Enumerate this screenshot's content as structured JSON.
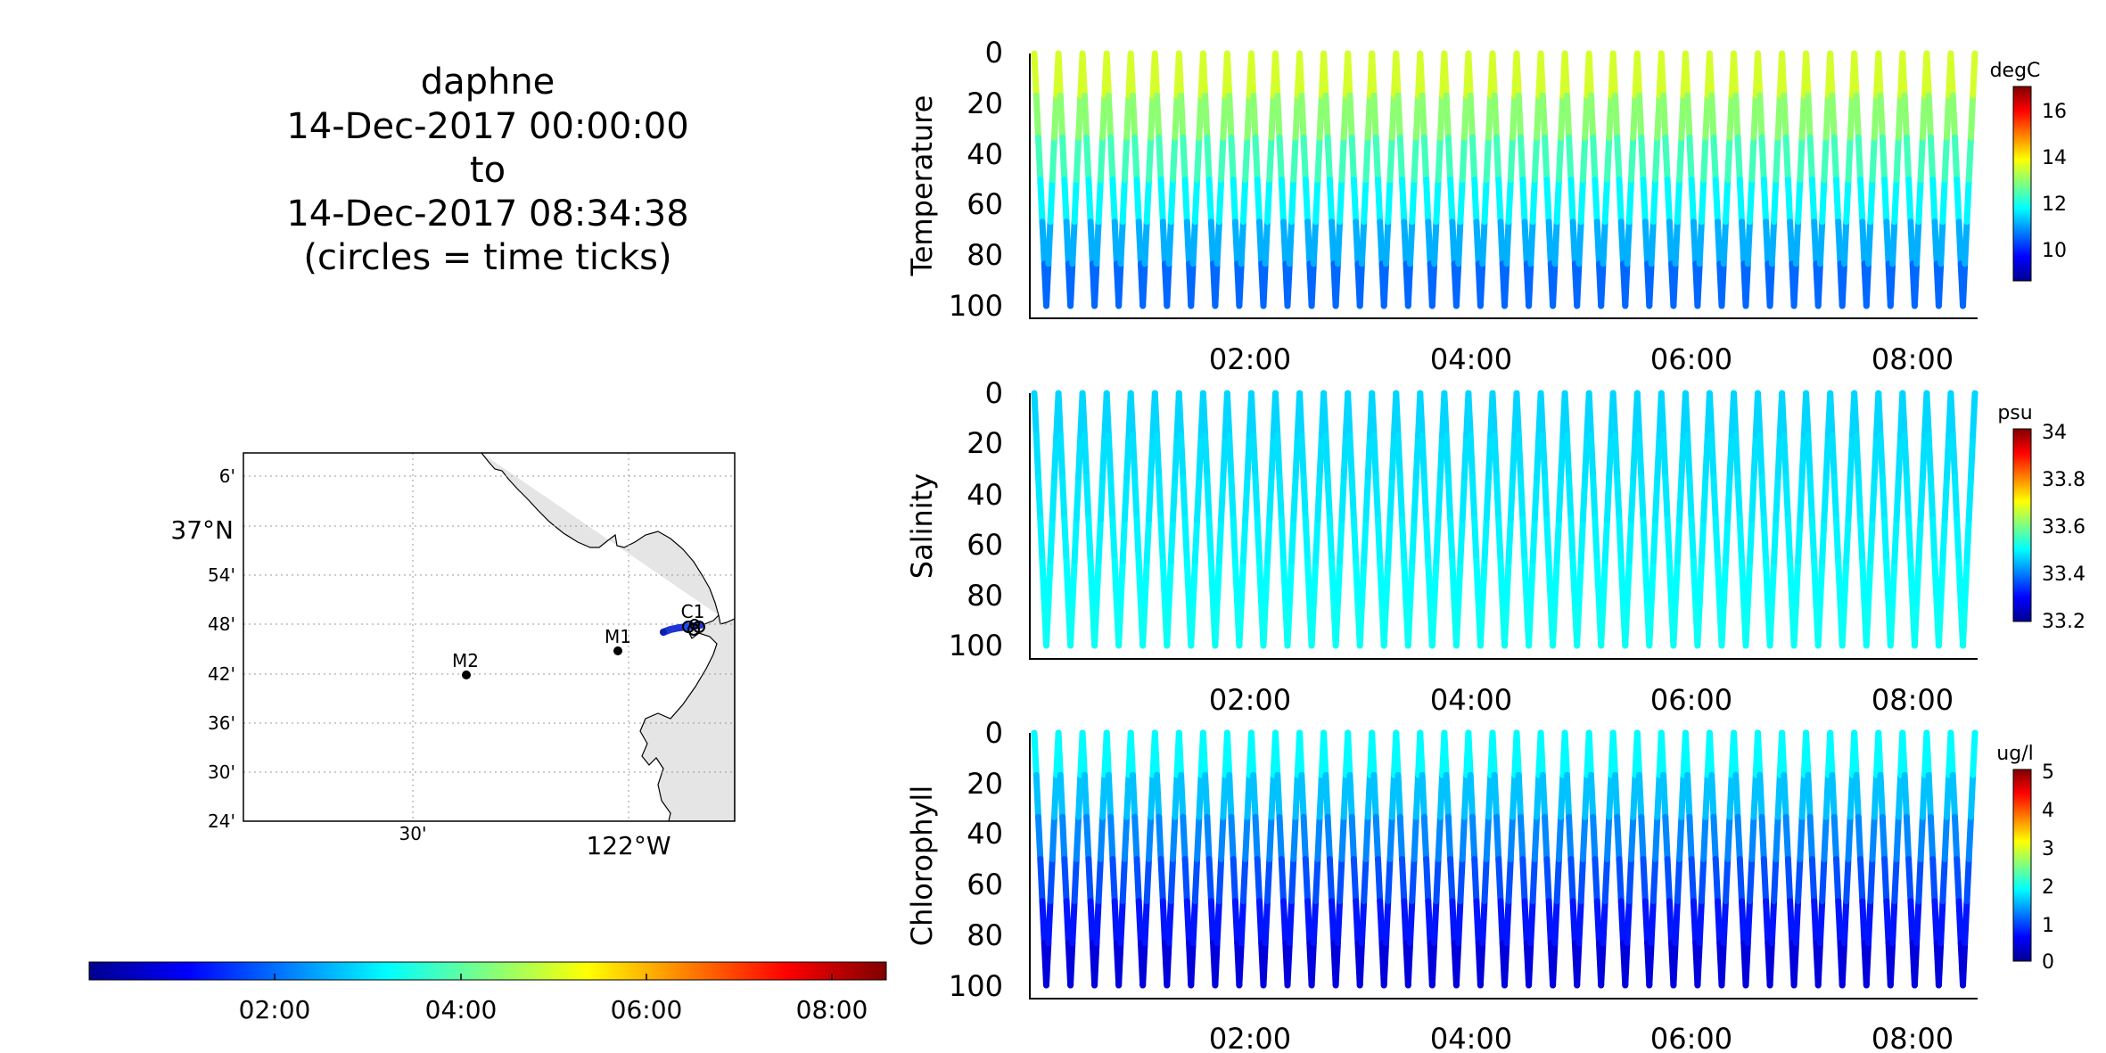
{
  "header": {
    "vehicle": "daphne",
    "start": "14-Dec-2017 00:00:00",
    "to": "to",
    "end": "14-Dec-2017 08:34:38",
    "note": "(circles = time ticks)"
  },
  "map": {
    "lat_ticks": [
      "6'",
      "37°N",
      "54'",
      "48'",
      "42'",
      "36'",
      "30'",
      "24'"
    ],
    "lon_ticks": [
      "30'",
      "122°W"
    ],
    "stations": [
      {
        "name": "M2",
        "lon": -122.38,
        "lat": 36.7
      },
      {
        "name": "M1",
        "lon": -122.03,
        "lat": 36.75
      },
      {
        "name": "C1",
        "lon": -121.84,
        "lat": 36.8
      }
    ],
    "vehicle_track_color": "#1f35d6",
    "land_color": "#e5e5e5"
  },
  "time_colorbar": {
    "ticks": [
      "02:00",
      "04:00",
      "06:00",
      "08:00"
    ],
    "colormap": "jet"
  },
  "chart_data": [
    {
      "type": "scatter",
      "ylabel": "Temperature",
      "units": "degC",
      "y_ticks": [
        "0",
        "20",
        "40",
        "60",
        "80",
        "100"
      ],
      "x_ticks": [
        "02:00",
        "04:00",
        "06:00",
        "08:00"
      ],
      "ylim": [
        100,
        0
      ],
      "xlim_hours": [
        0,
        8.58
      ],
      "colorbar_ticks": [
        "16",
        "14",
        "12",
        "10"
      ],
      "clim": [
        8.7,
        17.1
      ],
      "profile_note": "depth-time curtain of yo-yo profiles, 0-100 m, about 39 dives",
      "value_at_surface": 13.9,
      "value_at_bottom": 10.3
    },
    {
      "type": "scatter",
      "ylabel": "Salinity",
      "units": "psu",
      "y_ticks": [
        "0",
        "20",
        "40",
        "60",
        "80",
        "100"
      ],
      "x_ticks": [
        "02:00",
        "04:00",
        "06:00",
        "08:00"
      ],
      "ylim": [
        100,
        0
      ],
      "xlim_hours": [
        0,
        8.58
      ],
      "colorbar_ticks": [
        "34",
        "33.8",
        "33.6",
        "33.4",
        "33.2"
      ],
      "clim": [
        33.18,
        34.0
      ],
      "value_at_surface": 33.45,
      "value_at_bottom": 33.5
    },
    {
      "type": "scatter",
      "ylabel": "Chlorophyll",
      "units": "ug/l",
      "y_ticks": [
        "0",
        "20",
        "40",
        "60",
        "80",
        "100"
      ],
      "x_ticks": [
        "02:00",
        "04:00",
        "06:00",
        "08:00"
      ],
      "ylim": [
        100,
        0
      ],
      "xlim_hours": [
        0,
        8.58
      ],
      "colorbar_ticks": [
        "5",
        "4",
        "3",
        "2",
        "1",
        "0"
      ],
      "clim": [
        0,
        5
      ],
      "value_at_surface": 2.0,
      "value_at_bottom": 0.3
    }
  ]
}
